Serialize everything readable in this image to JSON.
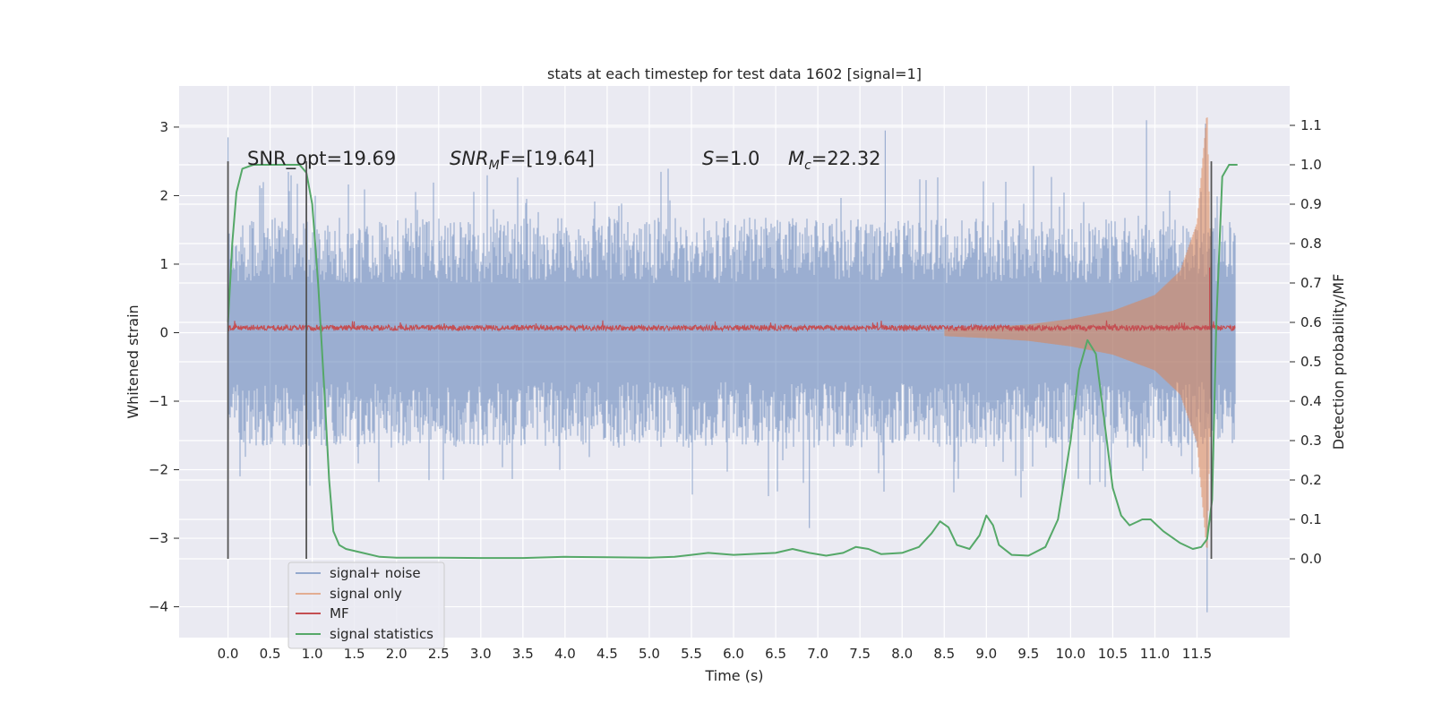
{
  "chart_data": {
    "type": "line",
    "title": "stats at each timestep for test data 1602 [signal=1]",
    "xlabel": "Time (s)",
    "ylabel": "Whitened strain",
    "ylabel_right": "Detection probability/MF",
    "xlim": [
      -0.58,
      12.6
    ],
    "ylim": [
      -4.45,
      3.6
    ],
    "ylim_right": [
      -0.2,
      1.2
    ],
    "x_ticks": [
      0.0,
      0.5,
      1.0,
      1.5,
      2.0,
      2.5,
      3.0,
      3.5,
      4.0,
      4.5,
      5.0,
      5.5,
      6.0,
      6.5,
      7.0,
      7.5,
      8.0,
      8.5,
      9.0,
      9.5,
      10.0,
      10.5,
      11.0,
      11.5
    ],
    "x_tick_labels": [
      "0.0",
      "0.5",
      "1.0",
      "1.5",
      "2.0",
      "2.5",
      "3.0",
      "3.5",
      "4.0",
      "4.5",
      "5.0",
      "5.5",
      "6.0",
      "6.5",
      "7.0",
      "7.5",
      "8.0",
      "8.5",
      "9.0",
      "9.5",
      "10.0",
      "10.5",
      "11.0",
      "11.5"
    ],
    "y_ticks": [
      -4,
      -3,
      -2,
      -1,
      0,
      1,
      2,
      3
    ],
    "y_tick_labels": [
      "−4",
      "−3",
      "−2",
      "−1",
      "0",
      "1",
      "2",
      "3"
    ],
    "y_right_ticks": [
      0.0,
      0.1,
      0.2,
      0.3,
      0.4,
      0.5,
      0.6,
      0.7,
      0.8,
      0.9,
      1.0,
      1.1
    ],
    "y_right_tick_labels": [
      "0.0",
      "0.1",
      "0.2",
      "0.3",
      "0.4",
      "0.5",
      "0.6",
      "0.7",
      "0.8",
      "0.9",
      "1.0",
      "1.1"
    ],
    "grid": true,
    "legend_position": "bottom-left",
    "annotations": [
      "SNR_opt=19.69",
      "SNR",
      "M",
      "F=[19.64]",
      "S",
      "=1.0",
      "M",
      "c",
      "=22.32"
    ],
    "vlines": [
      0.0,
      0.93,
      11.67
    ],
    "series": [
      {
        "name": "signal+ noise",
        "color": "#4c72b0",
        "axis": "left",
        "t_range": [
          0.0,
          11.95
        ],
        "typical_amplitude": 1.2,
        "peak_points": [
          [
            0.0,
            2.85
          ],
          [
            0.0,
            -2.05
          ],
          [
            6.9,
            -2.85
          ],
          [
            7.8,
            2.95
          ],
          [
            10.9,
            3.1
          ],
          [
            11.6,
            3.05
          ],
          [
            11.62,
            -4.08
          ]
        ]
      },
      {
        "name": "signal only",
        "color": "#dd8452",
        "axis": "left",
        "t_range": [
          8.5,
          11.7
        ],
        "envelope": [
          [
            8.5,
            0.05
          ],
          [
            9.0,
            0.08
          ],
          [
            9.5,
            0.12
          ],
          [
            10.0,
            0.2
          ],
          [
            10.5,
            0.32
          ],
          [
            11.0,
            0.55
          ],
          [
            11.3,
            0.9
          ],
          [
            11.5,
            1.6
          ],
          [
            11.62,
            3.25
          ],
          [
            11.68,
            0.2
          ]
        ]
      },
      {
        "name": "MF",
        "color": "#c44e52",
        "axis": "left",
        "t_range": [
          0.0,
          11.95
        ],
        "level": 0.07,
        "noise": 0.04,
        "peak_points": [
          [
            11.65,
            0.95
          ],
          [
            11.67,
            1.0
          ]
        ]
      },
      {
        "name": "signal statistics",
        "color": "#55a868",
        "axis": "right",
        "points": [
          [
            0.0,
            0.6
          ],
          [
            0.05,
            0.8
          ],
          [
            0.1,
            0.93
          ],
          [
            0.17,
            0.99
          ],
          [
            0.3,
            1.0
          ],
          [
            0.6,
            1.0
          ],
          [
            0.85,
            1.0
          ],
          [
            0.93,
            0.98
          ],
          [
            1.0,
            0.9
          ],
          [
            1.07,
            0.7
          ],
          [
            1.15,
            0.4
          ],
          [
            1.2,
            0.2
          ],
          [
            1.25,
            0.07
          ],
          [
            1.32,
            0.035
          ],
          [
            1.4,
            0.025
          ],
          [
            1.6,
            0.015
          ],
          [
            1.8,
            0.005
          ],
          [
            2.0,
            0.003
          ],
          [
            2.5,
            0.003
          ],
          [
            3.0,
            0.002
          ],
          [
            3.5,
            0.002
          ],
          [
            4.0,
            0.005
          ],
          [
            4.5,
            0.004
          ],
          [
            5.0,
            0.003
          ],
          [
            5.3,
            0.005
          ],
          [
            5.5,
            0.01
          ],
          [
            5.7,
            0.015
          ],
          [
            6.0,
            0.01
          ],
          [
            6.3,
            0.013
          ],
          [
            6.5,
            0.015
          ],
          [
            6.7,
            0.025
          ],
          [
            6.9,
            0.015
          ],
          [
            7.1,
            0.008
          ],
          [
            7.3,
            0.015
          ],
          [
            7.45,
            0.03
          ],
          [
            7.6,
            0.025
          ],
          [
            7.75,
            0.012
          ],
          [
            8.0,
            0.015
          ],
          [
            8.2,
            0.03
          ],
          [
            8.35,
            0.065
          ],
          [
            8.45,
            0.095
          ],
          [
            8.55,
            0.08
          ],
          [
            8.65,
            0.035
          ],
          [
            8.8,
            0.025
          ],
          [
            8.92,
            0.06
          ],
          [
            9.0,
            0.11
          ],
          [
            9.08,
            0.085
          ],
          [
            9.15,
            0.035
          ],
          [
            9.3,
            0.01
          ],
          [
            9.5,
            0.008
          ],
          [
            9.7,
            0.03
          ],
          [
            9.85,
            0.1
          ],
          [
            10.0,
            0.3
          ],
          [
            10.1,
            0.48
          ],
          [
            10.2,
            0.555
          ],
          [
            10.3,
            0.52
          ],
          [
            10.4,
            0.35
          ],
          [
            10.5,
            0.18
          ],
          [
            10.6,
            0.11
          ],
          [
            10.7,
            0.085
          ],
          [
            10.85,
            0.1
          ],
          [
            10.95,
            0.1
          ],
          [
            11.1,
            0.07
          ],
          [
            11.3,
            0.04
          ],
          [
            11.45,
            0.025
          ],
          [
            11.55,
            0.03
          ],
          [
            11.62,
            0.05
          ],
          [
            11.68,
            0.15
          ],
          [
            11.73,
            0.6
          ],
          [
            11.8,
            0.97
          ],
          [
            11.88,
            1.0
          ],
          [
            11.98,
            1.0
          ]
        ]
      }
    ]
  },
  "colors": {
    "plot_background": "#eaeaf2",
    "grid": "#ffffff",
    "vline": "#555555"
  }
}
